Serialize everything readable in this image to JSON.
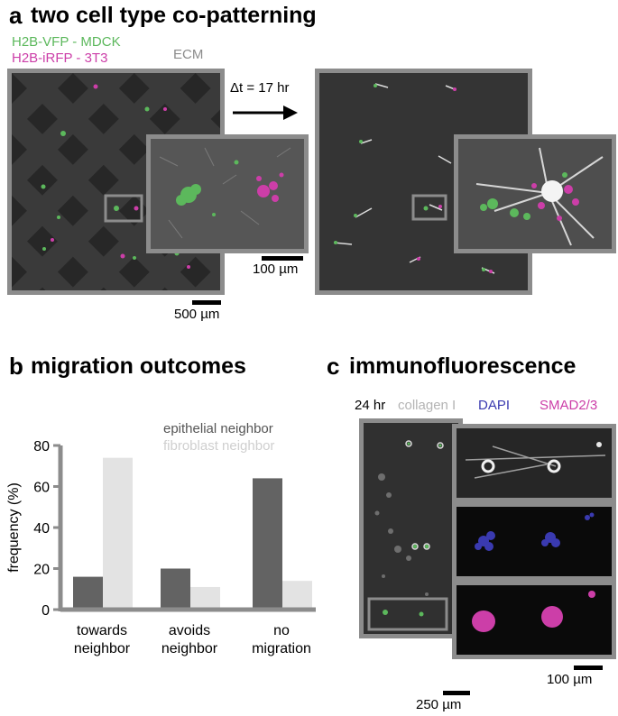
{
  "panel_a": {
    "letter": "a",
    "title": "two cell type co-patterning",
    "legend_green": "H2B-VFP - MDCK",
    "legend_magenta": "H2B-iRFP - 3T3",
    "ecm_label": "ECM",
    "time_label": "Δt = 17 hr",
    "scale_inset": "100 µm",
    "scale_main": "500 µm"
  },
  "panel_b": {
    "letter": "b",
    "title": "migration outcomes"
  },
  "panel_c": {
    "letter": "c",
    "title": "immunofluorescence",
    "time_label": "24 hr",
    "stain_collagen": "collagen I",
    "stain_dapi": "DAPI",
    "stain_smad": "SMAD2/3",
    "scale_inset": "100 µm",
    "scale_main": "250 µm"
  },
  "colors": {
    "green": "#5cb85c",
    "magenta": "#cc3ea8",
    "blue": "#3a3ab0",
    "frame": "#8c8c8c",
    "dark_bar": "#636363",
    "light_bar": "#e3e3e3"
  },
  "chart_data": {
    "type": "bar",
    "categories": [
      "towards neighbor",
      "avoids neighbor",
      "no migration"
    ],
    "category_lines": [
      [
        "towards",
        "neighbor"
      ],
      [
        "avoids",
        "neighbor"
      ],
      [
        "no",
        "migration"
      ]
    ],
    "series": [
      {
        "name": "epithelial neighbor",
        "values": [
          16,
          20,
          64
        ],
        "color": "#636363"
      },
      {
        "name": "fibroblast neighbor",
        "values": [
          74,
          11,
          14
        ],
        "color": "#e3e3e3"
      }
    ],
    "ylabel": "frequency (%)",
    "yticks": [
      0,
      20,
      40,
      60,
      80
    ],
    "ylim": [
      0,
      80
    ],
    "legend_placement": "top-right",
    "grid": false
  }
}
